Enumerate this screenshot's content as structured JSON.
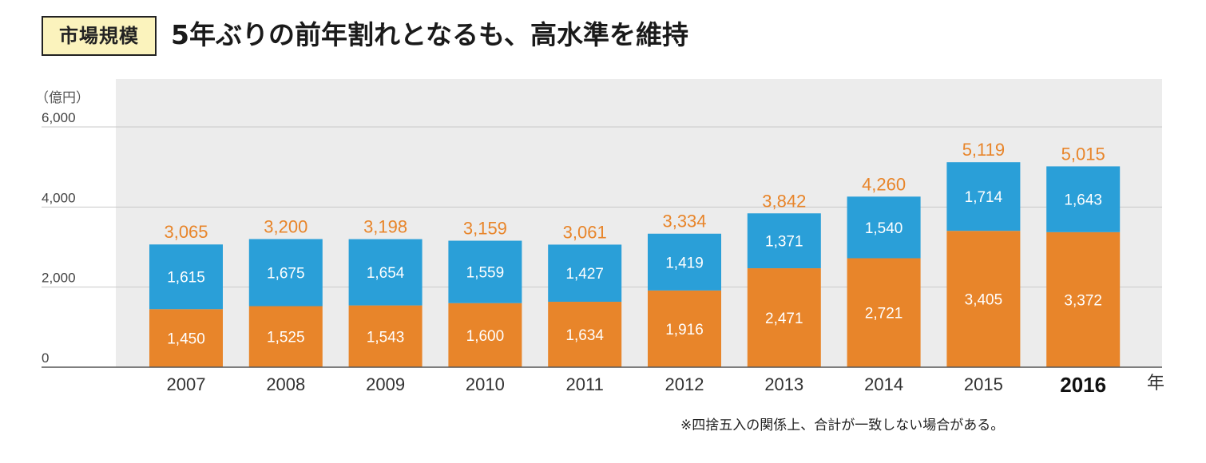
{
  "header": {
    "badge": "市場規模",
    "headline": "5年ぶりの前年割れとなるも、高水準を維持"
  },
  "footnote": "※四捨五入の関係上、合計が一致しない場合がある。",
  "colors": {
    "bottom_series": "#e8852a",
    "top_series": "#2a9fd8",
    "total_label": "#e8852a",
    "plot_background": "#ececec",
    "badge_background": "#fbf3bd"
  },
  "chart_data": {
    "type": "bar",
    "stacked": true,
    "categories": [
      "2007",
      "2008",
      "2009",
      "2010",
      "2011",
      "2012",
      "2013",
      "2014",
      "2015",
      "2016"
    ],
    "highlight_category": "2016",
    "series": [
      {
        "values": [
          1450,
          1525,
          1543,
          1600,
          1634,
          1916,
          2471,
          2721,
          3405,
          3372
        ],
        "labels": [
          "1,450",
          "1,525",
          "1,543",
          "1,600",
          "1,634",
          "1,916",
          "2,471",
          "2,721",
          "3,405",
          "3,372"
        ]
      },
      {
        "values": [
          1615,
          1675,
          1654,
          1559,
          1427,
          1419,
          1371,
          1540,
          1714,
          1643
        ],
        "labels": [
          "1,615",
          "1,675",
          "1,654",
          "1,559",
          "1,427",
          "1,419",
          "1,371",
          "1,540",
          "1,714",
          "1,643"
        ]
      }
    ],
    "totals": [
      3065,
      3200,
      3198,
      3159,
      3061,
      3334,
      3842,
      4260,
      5119,
      5015
    ],
    "total_labels": [
      "3,065",
      "3,200",
      "3,198",
      "3,159",
      "3,061",
      "3,334",
      "3,842",
      "4,260",
      "5,119",
      "5,015"
    ],
    "ylabel": "（億円）",
    "xlabel": "年",
    "ylim": [
      0,
      6000
    ],
    "yticks": [
      0,
      2000,
      4000,
      6000
    ],
    "ytick_labels": [
      "0",
      "2,000",
      "4,000",
      "6,000"
    ],
    "grid": true,
    "legend": "none"
  }
}
